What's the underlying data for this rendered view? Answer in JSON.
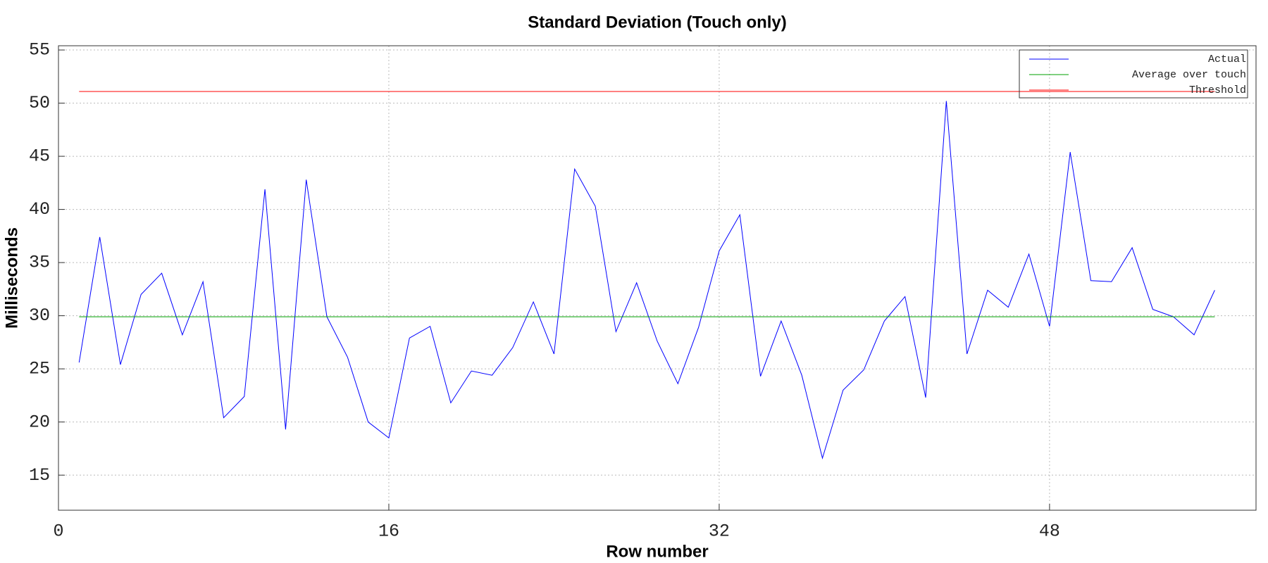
{
  "chart_data": {
    "type": "line",
    "title": "Standard Deviation (Touch only)",
    "x_label": "Row number",
    "y_label": "Milliseconds",
    "x": [
      1,
      2,
      3,
      4,
      5,
      6,
      7,
      8,
      9,
      10,
      11,
      12,
      13,
      14,
      15,
      16,
      17,
      18,
      19,
      20,
      21,
      22,
      23,
      24,
      25,
      26,
      27,
      28,
      29,
      30,
      31,
      32,
      33,
      34,
      35,
      36,
      37,
      38,
      39,
      40,
      41,
      42,
      43,
      44,
      45,
      46,
      47,
      48,
      49,
      50,
      51,
      52,
      53,
      54,
      55,
      56
    ],
    "series": [
      {
        "name": "Actual",
        "color": "#0000ff",
        "values": [
          25.6,
          37.4,
          25.4,
          32.0,
          34.0,
          28.2,
          33.2,
          20.4,
          22.4,
          41.9,
          19.3,
          42.8,
          29.9,
          26.1,
          20.0,
          18.5,
          27.9,
          29.0,
          21.8,
          24.8,
          24.4,
          27.0,
          31.3,
          26.4,
          43.8,
          40.3,
          28.5,
          33.1,
          27.6,
          23.6,
          28.9,
          36.1,
          39.5,
          24.3,
          29.5,
          24.4,
          16.6,
          23.0,
          24.9,
          29.5,
          31.8,
          22.3,
          50.2,
          26.4,
          32.4,
          30.8,
          35.8,
          29.0,
          45.4,
          33.3,
          33.2,
          36.4,
          30.6,
          29.9,
          28.2,
          32.4
        ]
      },
      {
        "name": "Average over touch",
        "color": "#00a000",
        "values": [
          29.9,
          29.9,
          29.9,
          29.9,
          29.9,
          29.9,
          29.9,
          29.9,
          29.9,
          29.9,
          29.9,
          29.9,
          29.9,
          29.9,
          29.9,
          29.9,
          29.9,
          29.9,
          29.9,
          29.9,
          29.9,
          29.9,
          29.9,
          29.9,
          29.9,
          29.9,
          29.9,
          29.9,
          29.9,
          29.9,
          29.9,
          29.9,
          29.9,
          29.9,
          29.9,
          29.9,
          29.9,
          29.9,
          29.9,
          29.9,
          29.9,
          29.9,
          29.9,
          29.9,
          29.9,
          29.9,
          29.9,
          29.9,
          29.9,
          29.9,
          29.9,
          29.9,
          29.9,
          29.9,
          29.9,
          29.9
        ]
      },
      {
        "name": "Threshold",
        "color": "#ff0000",
        "values": [
          51.1,
          51.1,
          51.1,
          51.1,
          51.1,
          51.1,
          51.1,
          51.1,
          51.1,
          51.1,
          51.1,
          51.1,
          51.1,
          51.1,
          51.1,
          51.1,
          51.1,
          51.1,
          51.1,
          51.1,
          51.1,
          51.1,
          51.1,
          51.1,
          51.1,
          51.1,
          51.1,
          51.1,
          51.1,
          51.1,
          51.1,
          51.1,
          51.1,
          51.1,
          51.1,
          51.1,
          51.1,
          51.1,
          51.1,
          51.1,
          51.1,
          51.1,
          51.1,
          51.1,
          51.1,
          51.1,
          51.1,
          51.1,
          51.1,
          51.1,
          51.1,
          51.1,
          51.1,
          51.1,
          51.1,
          51.1
        ]
      }
    ],
    "xlim": [
      0,
      58
    ],
    "ylim": [
      11.7,
      55.4
    ],
    "xticks": [
      0,
      16,
      32,
      48
    ],
    "yticks": [
      15,
      20,
      25,
      30,
      35,
      40,
      45,
      50,
      55
    ],
    "grid": true,
    "legend": "upper right"
  }
}
